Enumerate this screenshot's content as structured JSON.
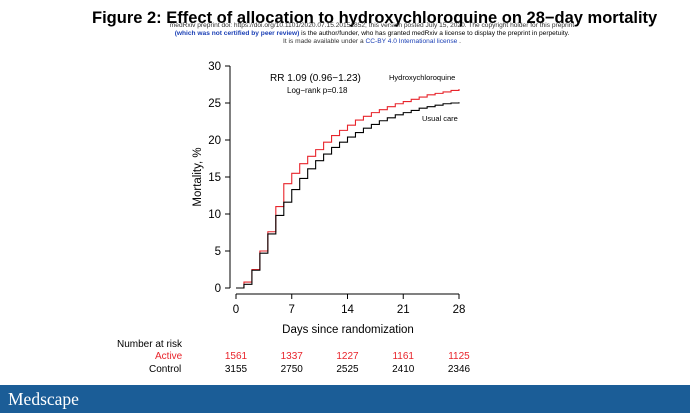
{
  "figure_title": "Figure 2: Effect of allocation to hydroxychloroquine on 28−day mortality",
  "notice": {
    "line1": "medRxiv preprint doi: https://doi.org/10.1101/2020.07.15.20151852; this version posted July 15, 2020. The copyright holder for this preprint",
    "line2_bold": "(which was not certified by peer review)",
    "line2_rest": " is the author/funder, who has granted medRxiv a license to display the preprint in perpetuity.",
    "line3_start": "It is made available under a ",
    "line3_link": "CC-BY 4.0 International license",
    "line3_end": " ."
  },
  "colors": {
    "hydroxychloroquine": "#e8242b",
    "usual_care": "#000000",
    "footer": "#1b5d97"
  },
  "chart_data": {
    "type": "line",
    "step": true,
    "xlabel": "Days since randomization",
    "ylabel": "Mortality, %",
    "xlim": [
      0,
      28
    ],
    "ylim": [
      0,
      30
    ],
    "xticks": [
      0,
      7,
      14,
      21,
      28
    ],
    "yticks": [
      0,
      5,
      10,
      15,
      20,
      25,
      30
    ],
    "grid": false,
    "annotation": {
      "line1": "RR 1.09 (0.96−1.23)",
      "line2": "Log−rank p=0.18"
    },
    "x": [
      0,
      1,
      2,
      3,
      4,
      5,
      6,
      7,
      8,
      9,
      10,
      11,
      12,
      13,
      14,
      15,
      16,
      17,
      18,
      19,
      20,
      21,
      22,
      23,
      24,
      25,
      26,
      27,
      28
    ],
    "series": [
      {
        "name": "Hydroxychloroquine",
        "color": "#e8242b",
        "values": [
          0,
          0.8,
          2.5,
          5.0,
          7.6,
          11.0,
          14.1,
          15.5,
          16.8,
          17.8,
          18.7,
          19.7,
          20.6,
          21.3,
          22.0,
          22.7,
          23.2,
          23.7,
          24.1,
          24.5,
          24.9,
          25.2,
          25.5,
          25.8,
          26.1,
          26.3,
          26.5,
          26.7,
          26.9
        ]
      },
      {
        "name": "Usual care",
        "color": "#000000",
        "values": [
          0,
          0.5,
          2.4,
          4.7,
          7.3,
          9.8,
          11.6,
          13.3,
          14.8,
          16.1,
          17.2,
          18.1,
          19.0,
          19.7,
          20.4,
          21.0,
          21.6,
          22.1,
          22.6,
          23.0,
          23.4,
          23.7,
          24.0,
          24.3,
          24.5,
          24.7,
          24.9,
          25.0,
          25.1
        ]
      }
    ],
    "risk_table": {
      "title": "Number at risk",
      "days": [
        0,
        7,
        14,
        21,
        28
      ],
      "rows": [
        {
          "label": "Active",
          "color": "#e8242b",
          "values": [
            "1561",
            "1337",
            "1227",
            "1161",
            "1125"
          ]
        },
        {
          "label": "Control",
          "color": "#000000",
          "values": [
            "3155",
            "2750",
            "2525",
            "2410",
            "2346"
          ]
        }
      ]
    }
  },
  "footer": {
    "logo": "Medscape"
  }
}
